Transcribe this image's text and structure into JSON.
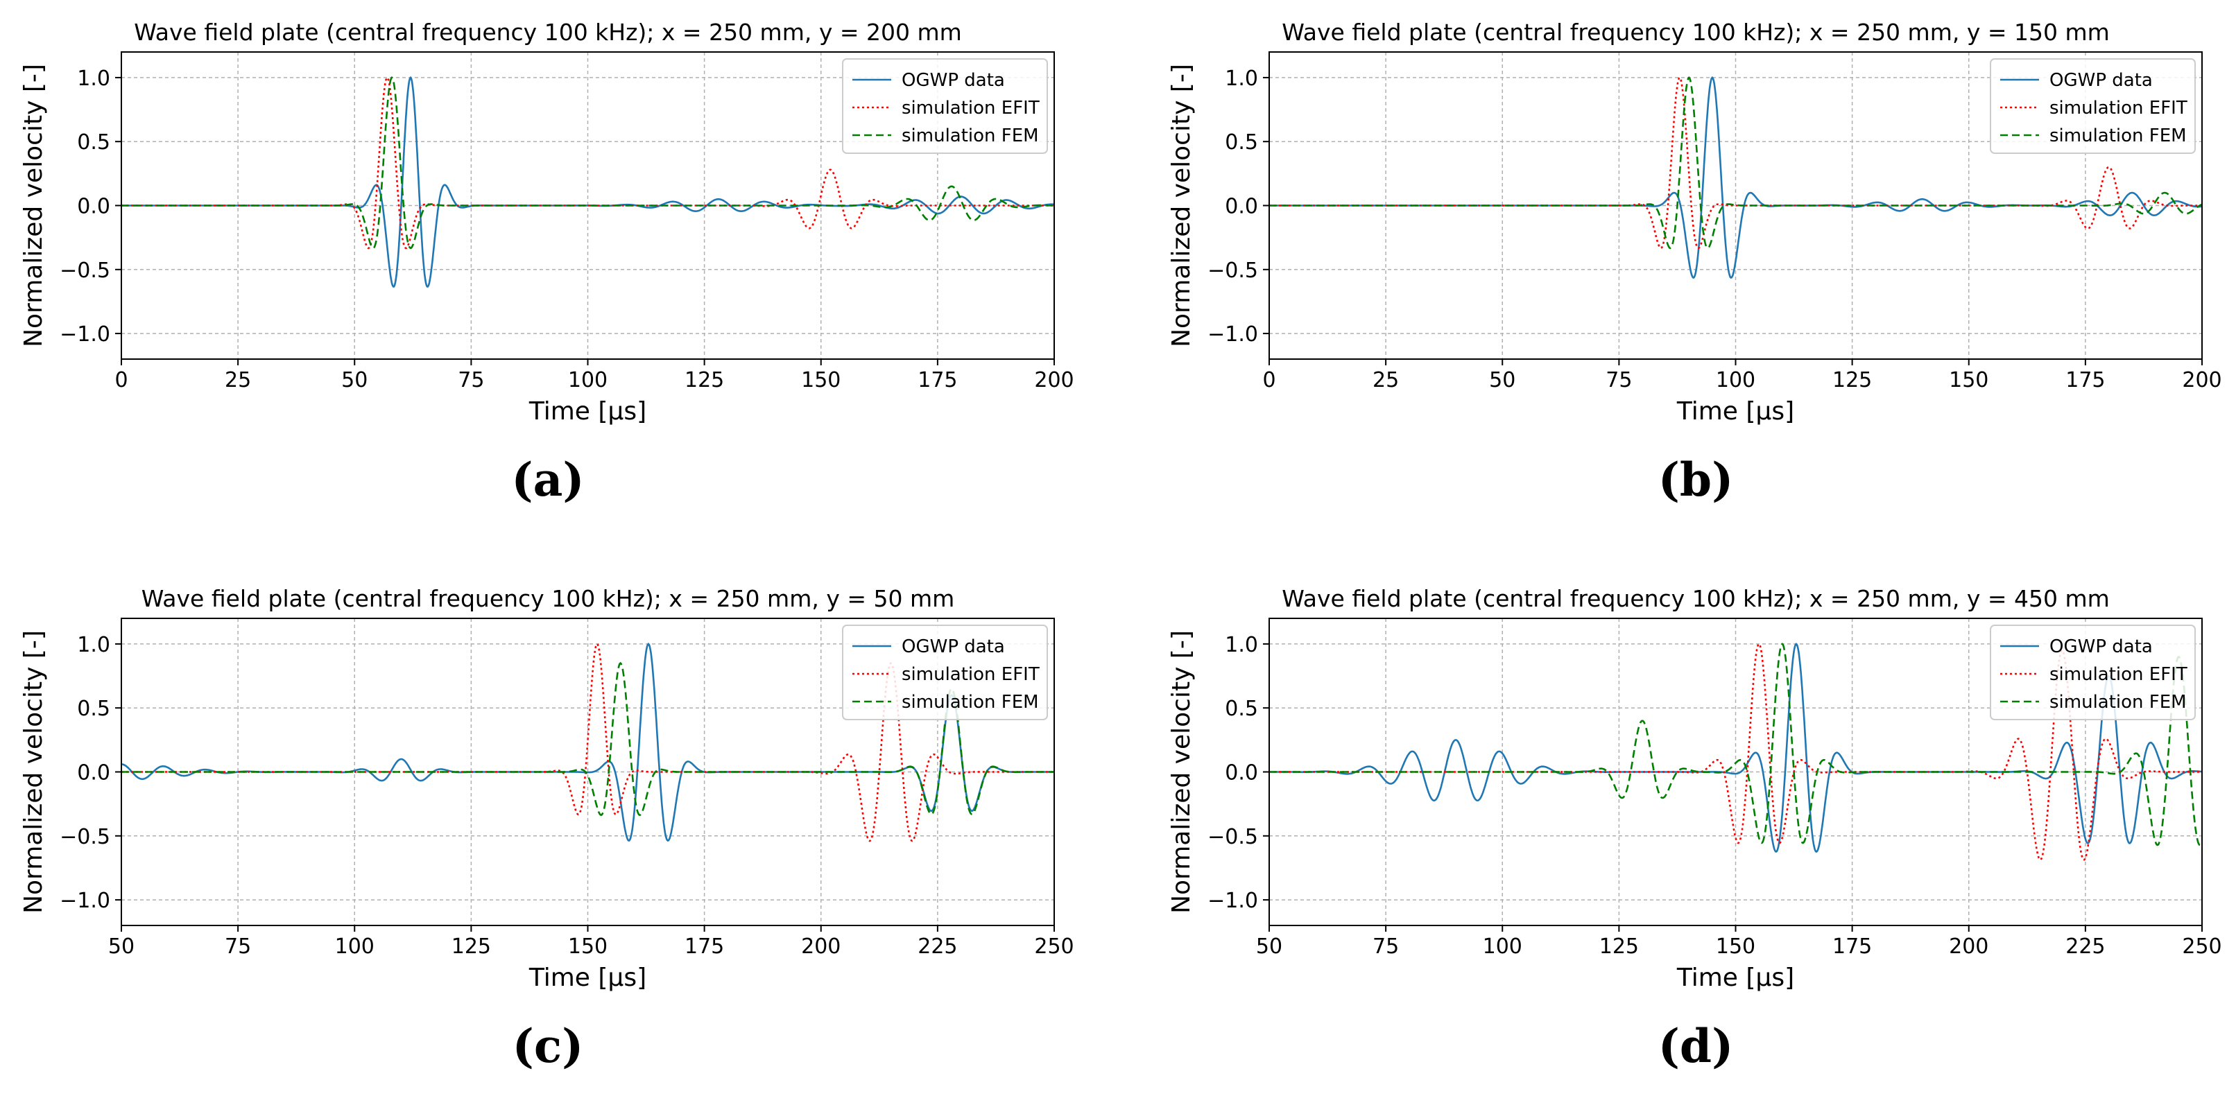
{
  "figure": {
    "captions": [
      "(a)",
      "(b)",
      "(c)",
      "(d)"
    ]
  },
  "chart_data": [
    {
      "type": "line",
      "id": "a",
      "title": "Wave field plate (central frequency 100 kHz); x = 250 mm, y = 200 mm",
      "xlabel": "Time [μs]",
      "ylabel": "Normalized velocity [-]",
      "xlim": [
        0,
        200
      ],
      "ylim": [
        -1.2,
        1.2
      ],
      "xticks": [
        "0",
        "25",
        "50",
        "75",
        "100",
        "125",
        "150",
        "175",
        "200"
      ],
      "yticks": [
        "−1.0",
        "−0.5",
        "0.0",
        "0.5",
        "1.0"
      ],
      "grid": true,
      "legend_position": "top-right",
      "series": [
        {
          "name": "OGWP data",
          "color": "#1f77b4",
          "style": "solid",
          "wave": {
            "packets": [
              [
                62,
                1.0,
                0.125,
                12
              ],
              [
                128,
                0.05,
                0.1,
                30
              ],
              [
                180,
                0.07,
                0.1,
                30
              ]
            ]
          }
        },
        {
          "name": "simulation EFIT",
          "color": "#ff0000",
          "style": "dotted",
          "wave": {
            "packets": [
              [
                57,
                1.0,
                0.1,
                9
              ],
              [
                152,
                0.28,
                0.1,
                15
              ]
            ]
          }
        },
        {
          "name": "simulation FEM",
          "color": "#008000",
          "style": "dashed",
          "wave": {
            "packets": [
              [
                58,
                1.0,
                0.1,
                9
              ],
              [
                178,
                0.15,
                0.1,
                20
              ]
            ]
          }
        }
      ]
    },
    {
      "type": "line",
      "id": "b",
      "title": "Wave field plate (central frequency 100 kHz); x = 250 mm, y = 150 mm",
      "xlabel": "Time [μs]",
      "ylabel": "Normalized velocity [-]",
      "xlim": [
        0,
        200
      ],
      "ylim": [
        -1.2,
        1.2
      ],
      "xticks": [
        "0",
        "25",
        "50",
        "75",
        "100",
        "125",
        "150",
        "175",
        "200"
      ],
      "yticks": [
        "−1.0",
        "−0.5",
        "0.0",
        "0.5",
        "1.0"
      ],
      "grid": true,
      "legend_position": "top-right",
      "series": [
        {
          "name": "OGWP data",
          "color": "#1f77b4",
          "style": "solid",
          "wave": {
            "packets": [
              [
                95,
                1.0,
                0.11,
                12
              ],
              [
                140,
                0.05,
                0.1,
                25
              ],
              [
                185,
                0.1,
                0.1,
                20
              ]
            ]
          }
        },
        {
          "name": "simulation EFIT",
          "color": "#ff0000",
          "style": "dotted",
          "wave": {
            "packets": [
              [
                88,
                1.0,
                0.1,
                9
              ],
              [
                180,
                0.3,
                0.1,
                14
              ]
            ]
          }
        },
        {
          "name": "simulation FEM",
          "color": "#008000",
          "style": "dashed",
          "wave": {
            "packets": [
              [
                90,
                1.0,
                0.1,
                9
              ],
              [
                192,
                0.1,
                0.1,
                15
              ]
            ]
          }
        }
      ]
    },
    {
      "type": "line",
      "id": "c",
      "title": "Wave field plate (central frequency 100 kHz); x = 250 mm, y = 50 mm",
      "xlabel": "Time [μs]",
      "ylabel": "Normalized velocity [-]",
      "xlim": [
        50,
        250
      ],
      "ylim": [
        -1.2,
        1.2
      ],
      "xticks": [
        "50",
        "75",
        "100",
        "125",
        "150",
        "175",
        "200",
        "225",
        "250"
      ],
      "yticks": [
        "−1.0",
        "−0.5",
        "0.0",
        "0.5",
        "1.0"
      ],
      "grid": true,
      "legend_position": "top-right",
      "series": [
        {
          "name": "OGWP data",
          "color": "#1f77b4",
          "style": "solid",
          "wave": {
            "packets": [
              [
                50,
                0.06,
                0.11,
                35
              ],
              [
                110,
                0.1,
                0.11,
                15
              ],
              [
                163,
                1.0,
                0.105,
                12
              ],
              [
                228,
                0.6,
                0.1,
                12
              ]
            ]
          }
        },
        {
          "name": "simulation EFIT",
          "color": "#ff0000",
          "style": "dotted",
          "wave": {
            "packets": [
              [
                152,
                1.0,
                0.1,
                9
              ],
              [
                215,
                0.85,
                0.1,
                15
              ]
            ]
          }
        },
        {
          "name": "simulation FEM",
          "color": "#008000",
          "style": "dashed",
          "wave": {
            "packets": [
              [
                157,
                0.85,
                0.1,
                10
              ],
              [
                228,
                0.65,
                0.1,
                12
              ]
            ]
          }
        }
      ]
    },
    {
      "type": "line",
      "id": "d",
      "title": "Wave field plate (central frequency 100 kHz); x = 250 mm, y = 450 mm",
      "xlabel": "Time [μs]",
      "ylabel": "Normalized velocity [-]",
      "xlim": [
        50,
        250
      ],
      "ylim": [
        -1.2,
        1.2
      ],
      "xticks": [
        "50",
        "75",
        "100",
        "125",
        "150",
        "175",
        "200",
        "225",
        "250"
      ],
      "yticks": [
        "−1.0",
        "−0.5",
        "0.0",
        "0.5",
        "1.0"
      ],
      "grid": true,
      "legend_position": "top-right",
      "series": [
        {
          "name": "OGWP data",
          "color": "#1f77b4",
          "style": "solid",
          "wave": {
            "packets": [
              [
                90,
                0.25,
                0.105,
                30
              ],
              [
                163,
                1.0,
                0.105,
                14
              ],
              [
                230,
                0.75,
                0.105,
                18
              ]
            ]
          }
        },
        {
          "name": "simulation EFIT",
          "color": "#ff0000",
          "style": "dotted",
          "wave": {
            "packets": [
              [
                155,
                1.0,
                0.1,
                13
              ],
              [
                220,
                0.95,
                0.1,
                18
              ]
            ]
          }
        },
        {
          "name": "simulation FEM",
          "color": "#008000",
          "style": "dashed",
          "wave": {
            "packets": [
              [
                160,
                1.0,
                0.1,
                13
              ],
              [
                245,
                0.9,
                0.1,
                15
              ],
              [
                130,
                0.4,
                0.1,
                12
              ]
            ]
          }
        }
      ]
    }
  ]
}
